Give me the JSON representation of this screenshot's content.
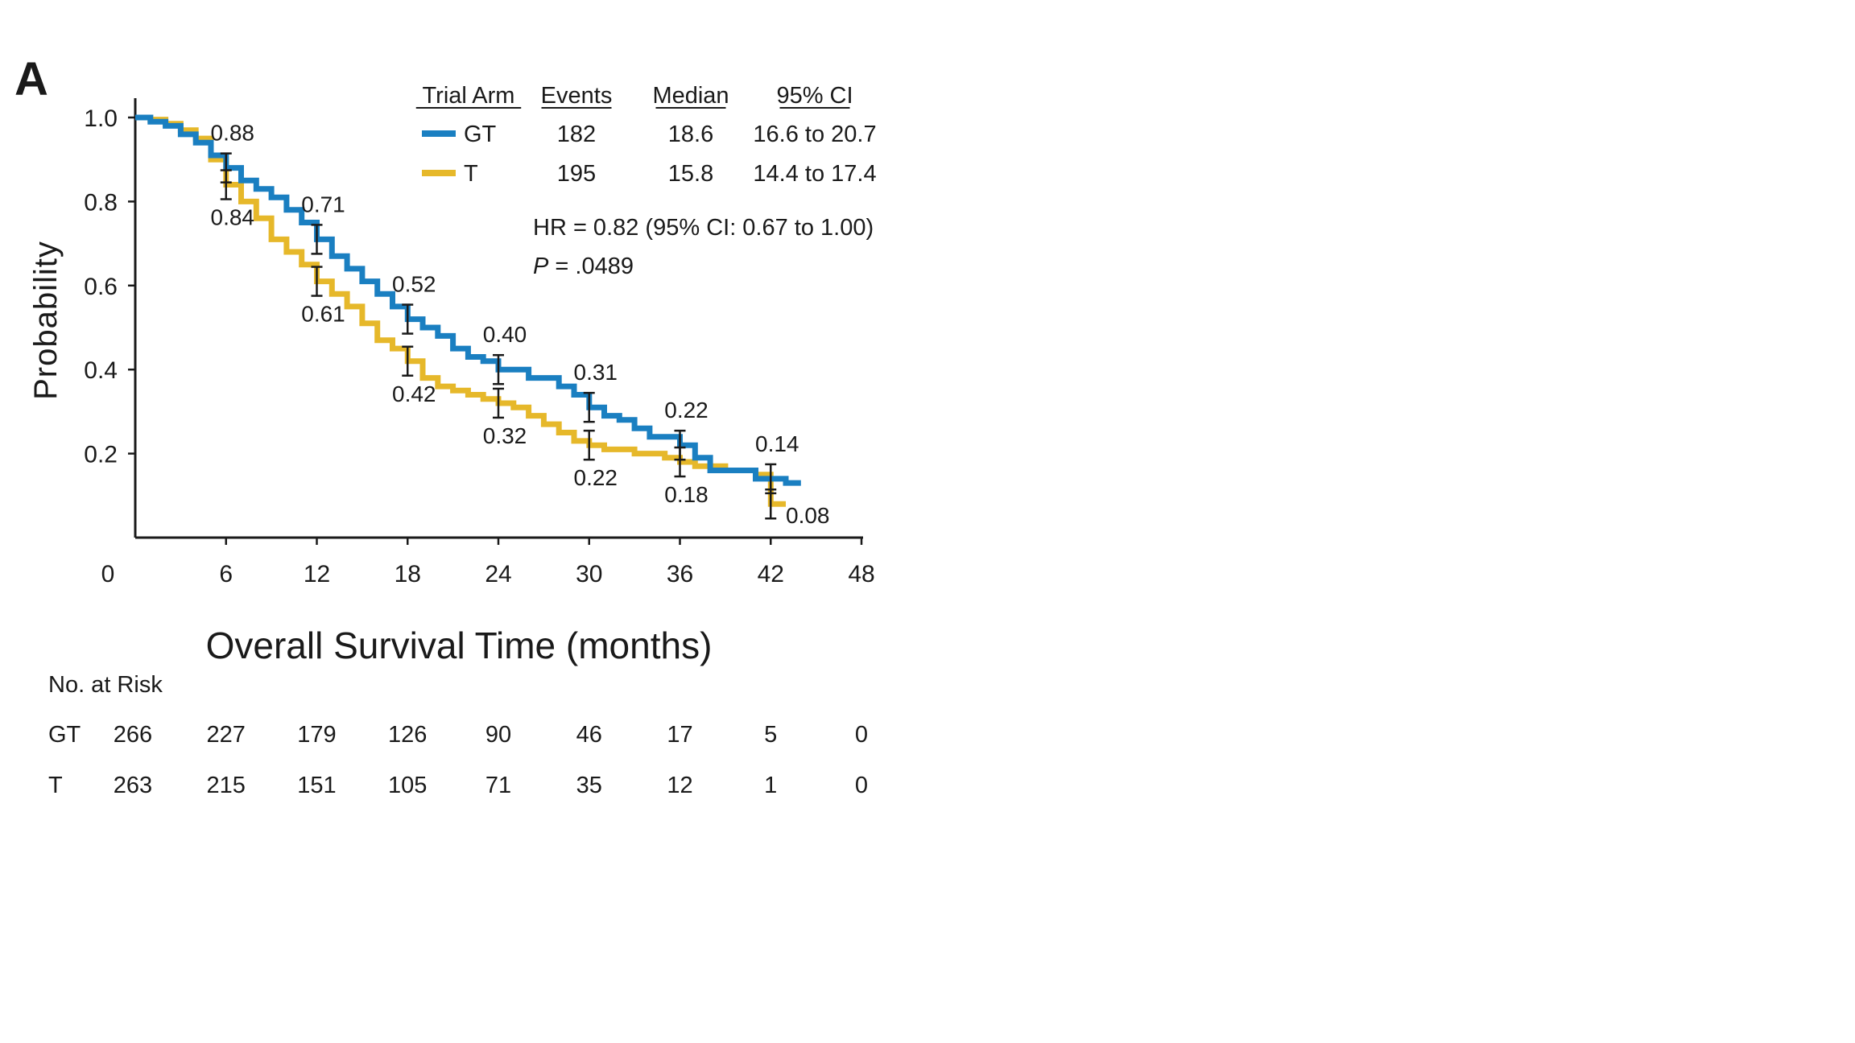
{
  "panel_label": "A",
  "colors": {
    "GT": "#1a7fc1",
    "T": "#e6b82a",
    "axis": "#1a1a1a"
  },
  "chart_data": {
    "type": "line",
    "subtype": "kaplan-meier",
    "xlabel": "Overall Survival Time (months)",
    "ylabel": "Probability",
    "xlim": [
      0,
      48
    ],
    "ylim": [
      0,
      1.0
    ],
    "x_ticks": [
      "0",
      "6",
      "12",
      "18",
      "24",
      "30",
      "36",
      "42",
      "48"
    ],
    "y_ticks": [
      "0.2",
      "0.4",
      "0.6",
      "0.8",
      "1.0"
    ],
    "grid": false,
    "legend": {
      "placement": "top-right",
      "headers": [
        "Trial Arm",
        "Events",
        "Median",
        "95% CI"
      ],
      "rows": [
        {
          "arm": "GT",
          "events": "182",
          "median": "18.6",
          "ci": "16.6 to 20.7"
        },
        {
          "arm": "T",
          "events": "195",
          "median": "15.8",
          "ci": "14.4 to 17.4"
        }
      ]
    },
    "annotations": {
      "hr": "HR = 0.82 (95% CI: 0.67 to 1.00)",
      "p_italic": "P",
      "p_rest": " = .0489"
    },
    "series": [
      {
        "name": "GT",
        "points": [
          [
            0,
            1.0
          ],
          [
            1,
            0.99
          ],
          [
            2,
            0.98
          ],
          [
            3,
            0.96
          ],
          [
            4,
            0.94
          ],
          [
            5,
            0.91
          ],
          [
            6,
            0.88
          ],
          [
            7,
            0.85
          ],
          [
            8,
            0.83
          ],
          [
            9,
            0.81
          ],
          [
            10,
            0.78
          ],
          [
            11,
            0.75
          ],
          [
            12,
            0.71
          ],
          [
            13,
            0.67
          ],
          [
            14,
            0.64
          ],
          [
            15,
            0.61
          ],
          [
            16,
            0.58
          ],
          [
            17,
            0.55
          ],
          [
            18,
            0.52
          ],
          [
            19,
            0.5
          ],
          [
            20,
            0.48
          ],
          [
            21,
            0.45
          ],
          [
            22,
            0.43
          ],
          [
            23,
            0.42
          ],
          [
            24,
            0.4
          ],
          [
            25,
            0.4
          ],
          [
            26,
            0.38
          ],
          [
            27,
            0.38
          ],
          [
            28,
            0.36
          ],
          [
            29,
            0.34
          ],
          [
            30,
            0.31
          ],
          [
            31,
            0.29
          ],
          [
            32,
            0.28
          ],
          [
            33,
            0.26
          ],
          [
            34,
            0.24
          ],
          [
            35,
            0.24
          ],
          [
            36,
            0.22
          ],
          [
            37,
            0.19
          ],
          [
            38,
            0.16
          ],
          [
            39,
            0.16
          ],
          [
            40,
            0.16
          ],
          [
            41,
            0.14
          ],
          [
            42,
            0.14
          ],
          [
            43,
            0.13
          ],
          [
            44,
            0.13
          ]
        ],
        "ci_points": [
          {
            "x": 6,
            "y": 0.88,
            "label": "0.88"
          },
          {
            "x": 12,
            "y": 0.71,
            "label": "0.71"
          },
          {
            "x": 18,
            "y": 0.52,
            "label": "0.52"
          },
          {
            "x": 24,
            "y": 0.4,
            "label": "0.40"
          },
          {
            "x": 30,
            "y": 0.31,
            "label": "0.31"
          },
          {
            "x": 36,
            "y": 0.22,
            "label": "0.22"
          },
          {
            "x": 42,
            "y": 0.14,
            "label": "0.14"
          }
        ]
      },
      {
        "name": "T",
        "points": [
          [
            0,
            1.0
          ],
          [
            1,
            0.995
          ],
          [
            2,
            0.985
          ],
          [
            3,
            0.97
          ],
          [
            4,
            0.95
          ],
          [
            5,
            0.9
          ],
          [
            6,
            0.84
          ],
          [
            7,
            0.8
          ],
          [
            8,
            0.76
          ],
          [
            9,
            0.71
          ],
          [
            10,
            0.68
          ],
          [
            11,
            0.65
          ],
          [
            12,
            0.61
          ],
          [
            13,
            0.58
          ],
          [
            14,
            0.55
          ],
          [
            15,
            0.51
          ],
          [
            16,
            0.47
          ],
          [
            17,
            0.45
          ],
          [
            18,
            0.42
          ],
          [
            19,
            0.38
          ],
          [
            20,
            0.36
          ],
          [
            21,
            0.35
          ],
          [
            22,
            0.34
          ],
          [
            23,
            0.33
          ],
          [
            24,
            0.32
          ],
          [
            25,
            0.31
          ],
          [
            26,
            0.29
          ],
          [
            27,
            0.27
          ],
          [
            28,
            0.25
          ],
          [
            29,
            0.23
          ],
          [
            30,
            0.22
          ],
          [
            31,
            0.21
          ],
          [
            32,
            0.21
          ],
          [
            33,
            0.2
          ],
          [
            34,
            0.2
          ],
          [
            35,
            0.19
          ],
          [
            36,
            0.18
          ],
          [
            37,
            0.17
          ],
          [
            38,
            0.17
          ],
          [
            39,
            0.16
          ],
          [
            40,
            0.16
          ],
          [
            41,
            0.15
          ],
          [
            42,
            0.08
          ],
          [
            43,
            0.08
          ]
        ],
        "ci_points": [
          {
            "x": 6,
            "y": 0.84,
            "label": "0.84"
          },
          {
            "x": 12,
            "y": 0.61,
            "label": "0.61"
          },
          {
            "x": 18,
            "y": 0.42,
            "label": "0.42"
          },
          {
            "x": 24,
            "y": 0.32,
            "label": "0.32"
          },
          {
            "x": 30,
            "y": 0.22,
            "label": "0.22"
          },
          {
            "x": 36,
            "y": 0.18,
            "label": "0.18"
          },
          {
            "x": 42,
            "y": 0.08,
            "label": "0.08"
          }
        ]
      }
    ],
    "risk_table": {
      "title": "No. at Risk",
      "rows": [
        {
          "arm": "GT",
          "values": [
            "266",
            "227",
            "179",
            "126",
            "90",
            "46",
            "17",
            "5",
            "0"
          ]
        },
        {
          "arm": "T",
          "values": [
            "263",
            "215",
            "151",
            "105",
            "71",
            "35",
            "12",
            "1",
            "0"
          ]
        }
      ]
    }
  }
}
